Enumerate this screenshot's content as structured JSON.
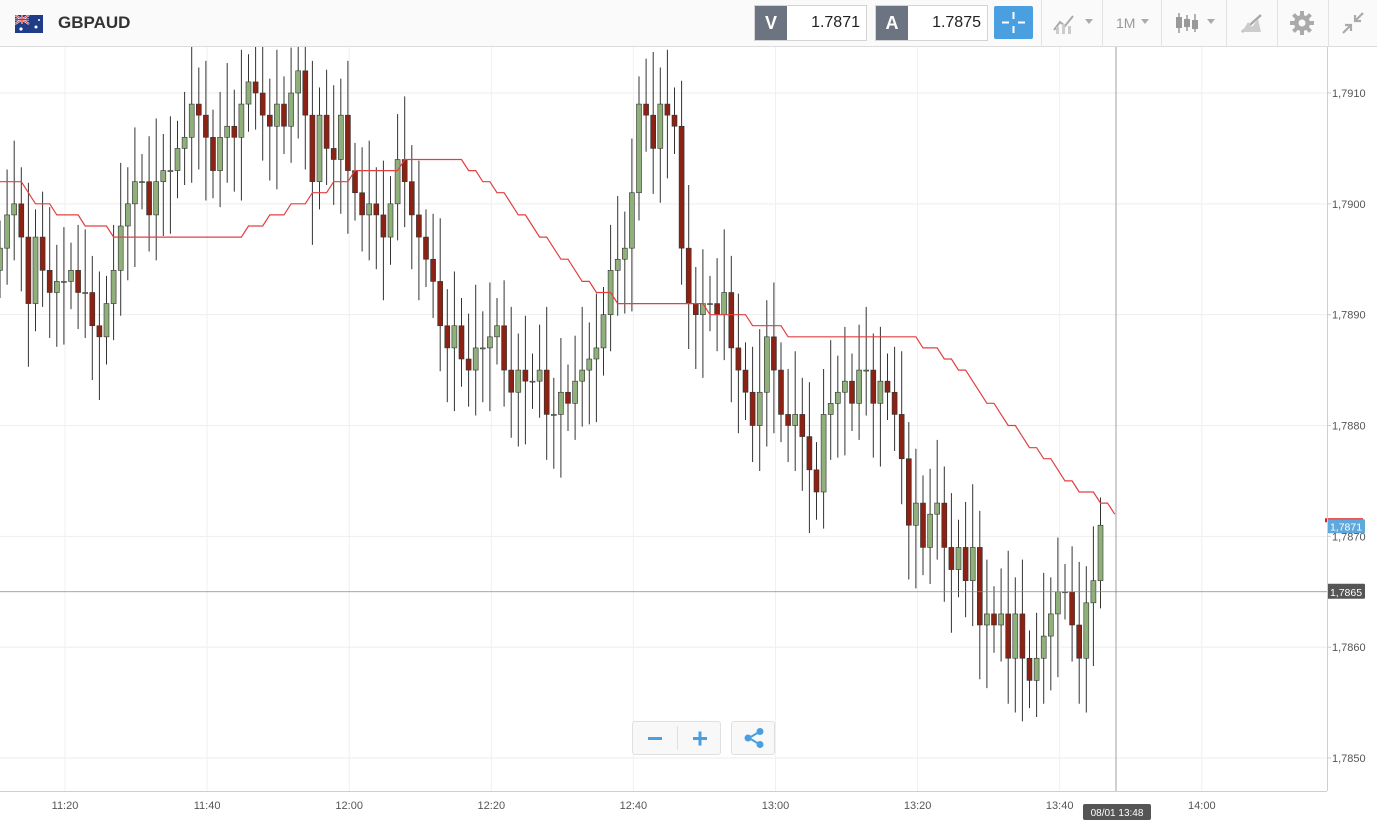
{
  "toolbar": {
    "symbol": "GBPAUD",
    "sell_label": "V",
    "sell_price": "1.7871",
    "buy_label": "A",
    "buy_price": "1.7875",
    "timeframe": "1M",
    "icons": [
      "flag-gb-au-icon",
      "crosshair-icon",
      "indicators-icon",
      "timeframe-icon",
      "candlestick-icon",
      "drawing-icon",
      "gear-icon",
      "collapse-icon"
    ]
  },
  "price_labels": {
    "current": "1,7871",
    "crosshair": "1,7865",
    "crosshair_time": "08/01 13:48"
  },
  "colors": {
    "up": "#8fb07a",
    "down": "#8b2213",
    "ma": "#e04040",
    "current_label": "#5fa8dc",
    "crosshair_label": "#555555",
    "accent": "#4a9fe0"
  },
  "chart_data": {
    "type": "candlestick",
    "symbol": "GBPAUD",
    "interval": "1M",
    "ylim": [
      1.7847,
      1.7915
    ],
    "y_ticks": [
      "1,7910",
      "1,7900",
      "1,7890",
      "1,7880",
      "1,7870",
      "1,7860",
      "1,7850"
    ],
    "x_ticks": [
      "11:20",
      "11:40",
      "12:00",
      "12:20",
      "12:40",
      "13:00",
      "13:20",
      "13:40",
      "14:00"
    ],
    "current_price": 1.7871,
    "crosshair": {
      "price": 1.7865,
      "time": "08/01 13:48"
    },
    "close_series": [
      1.7896,
      1.7899,
      1.79,
      1.7897,
      1.7891,
      1.7897,
      1.7894,
      1.7892,
      1.7893,
      1.7893,
      1.7894,
      1.7892,
      1.7892,
      1.7889,
      1.7888,
      1.7891,
      1.7894,
      1.7898,
      1.79,
      1.7902,
      1.7902,
      1.7899,
      1.7902,
      1.7903,
      1.7903,
      1.7905,
      1.7906,
      1.7909,
      1.7908,
      1.7906,
      1.7903,
      1.7906,
      1.7907,
      1.7906,
      1.7909,
      1.7911,
      1.791,
      1.7908,
      1.7907,
      1.7909,
      1.7907,
      1.791,
      1.7912,
      1.7908,
      1.7902,
      1.7908,
      1.7905,
      1.7904,
      1.7908,
      1.7903,
      1.7901,
      1.7899,
      1.79,
      1.7899,
      1.7897,
      1.79,
      1.7904,
      1.7902,
      1.7899,
      1.7897,
      1.7895,
      1.7893,
      1.7889,
      1.7887,
      1.7889,
      1.7886,
      1.7885,
      1.7887,
      1.7887,
      1.7888,
      1.7889,
      1.7885,
      1.7883,
      1.7885,
      1.7884,
      1.7884,
      1.7885,
      1.7881,
      1.7881,
      1.7883,
      1.7882,
      1.7884,
      1.7885,
      1.7886,
      1.7887,
      1.789,
      1.7894,
      1.7895,
      1.7896,
      1.7901,
      1.7909,
      1.7908,
      1.7905,
      1.7909,
      1.7908,
      1.7907,
      1.7896,
      1.7891,
      1.789,
      1.7891,
      1.7891,
      1.789,
      1.7892,
      1.7887,
      1.7885,
      1.7883,
      1.788,
      1.7883,
      1.7888,
      1.7885,
      1.7881,
      1.788,
      1.7881,
      1.7879,
      1.7876,
      1.7874,
      1.7881,
      1.7882,
      1.7883,
      1.7884,
      1.7882,
      1.7885,
      1.7885,
      1.7882,
      1.7884,
      1.7883,
      1.7881,
      1.7877,
      1.7871,
      1.7873,
      1.7869,
      1.7872,
      1.7873,
      1.7869,
      1.7867,
      1.7869,
      1.7866,
      1.7869,
      1.7862,
      1.7863,
      1.7862,
      1.7863,
      1.7859,
      1.7863,
      1.7859,
      1.7857,
      1.7859,
      1.7861,
      1.7863,
      1.7865,
      1.7865,
      1.7862,
      1.7859,
      1.7864,
      1.7866,
      1.7871
    ],
    "ma_series": [
      1.7902,
      1.7902,
      1.7902,
      1.7902,
      1.7901,
      1.79,
      1.79,
      1.79,
      1.7899,
      1.7899,
      1.7899,
      1.7899,
      1.7898,
      1.7898,
      1.7898,
      1.7898,
      1.7897,
      1.7897,
      1.7897,
      1.7897,
      1.7897,
      1.7897,
      1.7897,
      1.7897,
      1.7897,
      1.7897,
      1.7897,
      1.7897,
      1.7897,
      1.7897,
      1.7897,
      1.7897,
      1.7897,
      1.7897,
      1.7897,
      1.7898,
      1.7898,
      1.7898,
      1.7899,
      1.7899,
      1.7899,
      1.79,
      1.79,
      1.79,
      1.7901,
      1.7901,
      1.7901,
      1.7902,
      1.7902,
      1.7902,
      1.7903,
      1.7903,
      1.7903,
      1.7903,
      1.7903,
      1.7903,
      1.7903,
      1.7904,
      1.7904,
      1.7904,
      1.7904,
      1.7904,
      1.7904,
      1.7904,
      1.7904,
      1.7904,
      1.7903,
      1.7903,
      1.7902,
      1.7902,
      1.7901,
      1.7901,
      1.79,
      1.7899,
      1.7899,
      1.7898,
      1.7897,
      1.7897,
      1.7896,
      1.7895,
      1.7895,
      1.7894,
      1.7893,
      1.7893,
      1.7892,
      1.7892,
      1.7892,
      1.7891,
      1.7891,
      1.7891,
      1.7891,
      1.7891,
      1.7891,
      1.7891,
      1.7891,
      1.7891,
      1.7891,
      1.7891,
      1.7891,
      1.7891,
      1.789,
      1.789,
      1.789,
      1.789,
      1.789,
      1.789,
      1.7889,
      1.7889,
      1.7889,
      1.7889,
      1.7889,
      1.7888,
      1.7888,
      1.7888,
      1.7888,
      1.7888,
      1.7888,
      1.7888,
      1.7888,
      1.7888,
      1.7888,
      1.7888,
      1.7888,
      1.7888,
      1.7888,
      1.7888,
      1.7888,
      1.7888,
      1.7888,
      1.7888,
      1.7887,
      1.7887,
      1.7887,
      1.7886,
      1.7886,
      1.7885,
      1.7885,
      1.7884,
      1.7883,
      1.7882,
      1.7882,
      1.7881,
      1.788,
      1.788,
      1.7879,
      1.7878,
      1.7878,
      1.7877,
      1.7877,
      1.7876,
      1.7875,
      1.7875,
      1.7874,
      1.7874,
      1.7874,
      1.7873,
      1.7873,
      1.7872
    ]
  }
}
